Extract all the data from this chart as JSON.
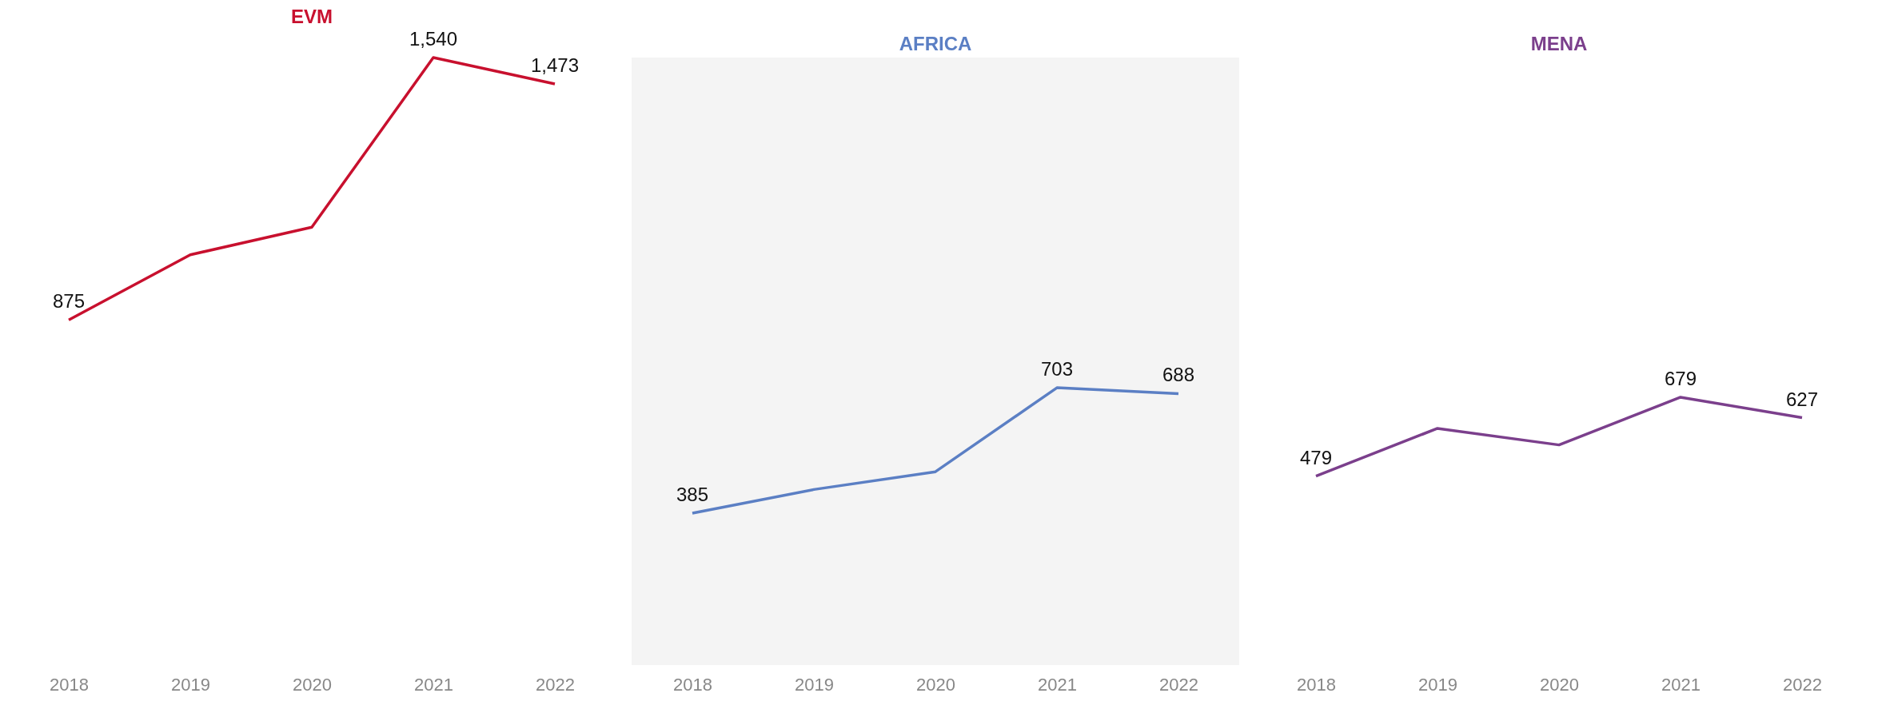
{
  "chart_data": [
    {
      "type": "line",
      "title": "EVM",
      "categories": [
        "2018",
        "2019",
        "2020",
        "2021",
        "2022"
      ],
      "tick_labels": "x",
      "grid": false,
      "series": [
        {
          "color": "#c8102e",
          "values": [
            875,
            1040,
            1110,
            1540,
            1473
          ],
          "value_labels": [
            "875",
            null,
            null,
            "1,540",
            "1,473"
          ]
        }
      ]
    },
    {
      "type": "line",
      "title": "AFRICA",
      "categories": [
        "2018",
        "2019",
        "2020",
        "2021",
        "2022"
      ],
      "tick_labels": "x",
      "grid": false,
      "series": [
        {
          "color": "#5b7fc4",
          "values": [
            385,
            445,
            490,
            703,
            688
          ],
          "value_labels": [
            "385",
            null,
            null,
            "703",
            "688"
          ]
        }
      ]
    },
    {
      "type": "line",
      "title": "MENA",
      "categories": [
        "2018",
        "2019",
        "2020",
        "2021",
        "2022"
      ],
      "tick_labels": "x",
      "grid": false,
      "series": [
        {
          "color": "#7b3f8c",
          "values": [
            479,
            600,
            558,
            679,
            627
          ],
          "value_labels": [
            "479",
            null,
            null,
            "679",
            "627"
          ]
        }
      ]
    }
  ]
}
